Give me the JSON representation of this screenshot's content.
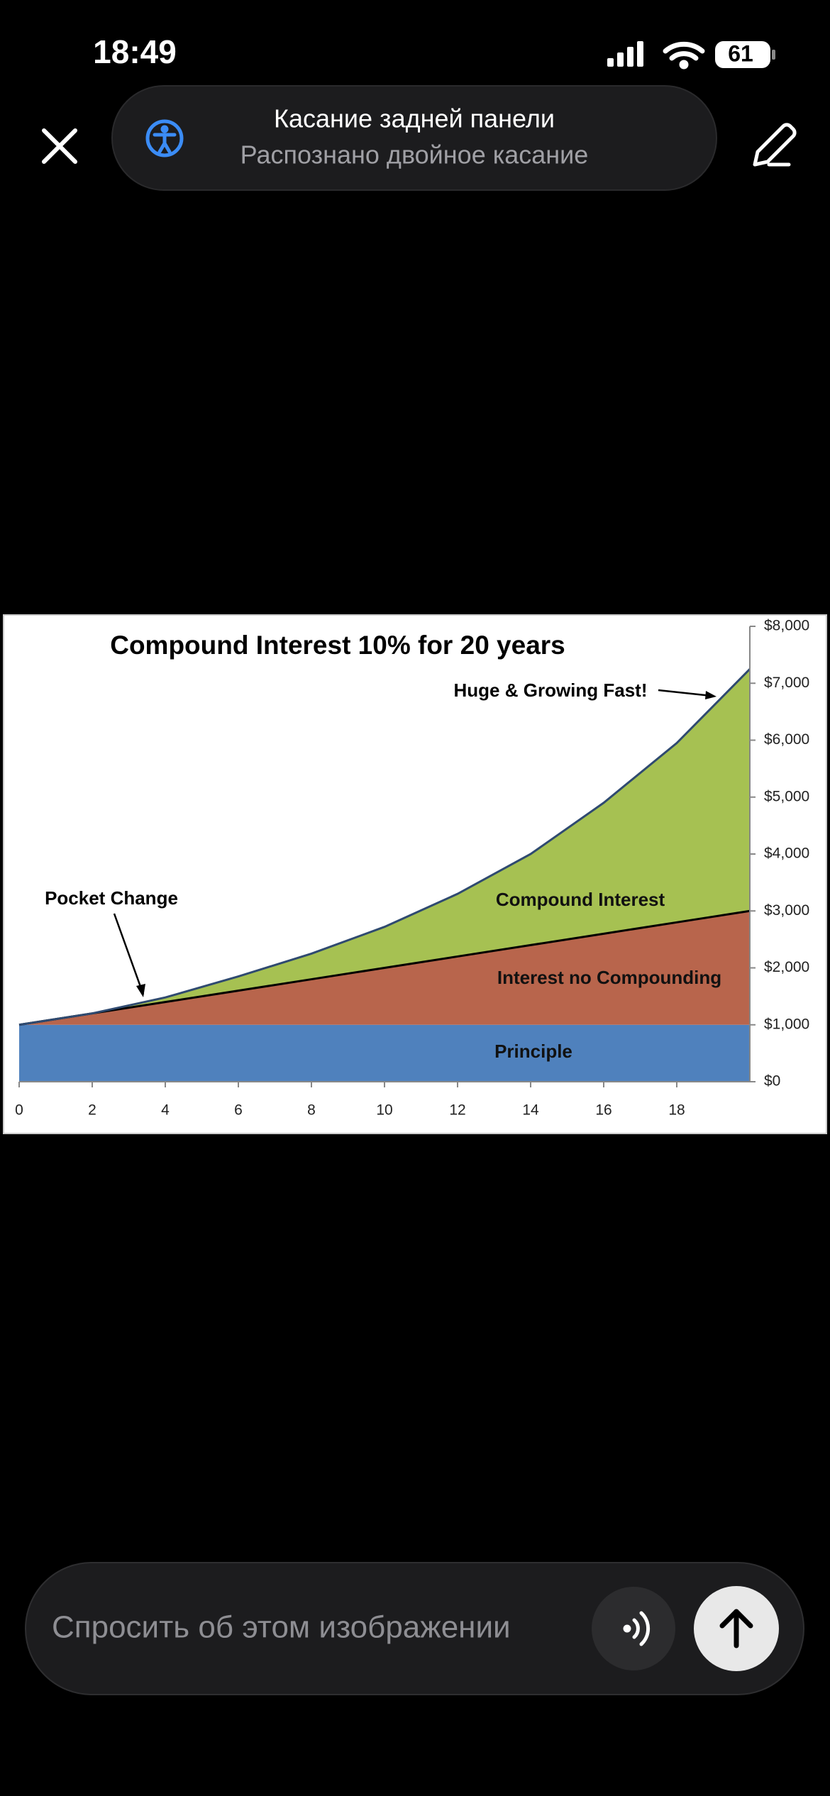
{
  "status_bar": {
    "time": "18:49",
    "battery": "61"
  },
  "notification": {
    "title": "Касание задней панели",
    "subtitle": "Распознано двойное касание"
  },
  "chart_data": {
    "type": "stacked_area",
    "title": "Compound Interest 10% for 20 years",
    "annotations": [
      "Pocket Change",
      "Huge & Growing Fast!"
    ],
    "x": [
      0,
      2,
      4,
      6,
      8,
      10,
      12,
      14,
      16,
      18,
      20
    ],
    "series": [
      {
        "name": "Principle",
        "color": "#4f81bd",
        "values": [
          1000,
          1000,
          1000,
          1000,
          1000,
          1000,
          1000,
          1000,
          1000,
          1000,
          1000
        ]
      },
      {
        "name": "Interest no Compounding",
        "color": "#b8654c",
        "values": [
          0,
          200,
          400,
          600,
          800,
          1000,
          1200,
          1400,
          1600,
          1800,
          2000
        ]
      },
      {
        "name": "Compound Interest",
        "color": "#a6c152",
        "values": [
          0,
          0,
          80,
          250,
          450,
          720,
          1100,
          1600,
          2300,
          3150,
          4250
        ]
      }
    ],
    "xlim": [
      0,
      20
    ],
    "xticks": [
      0,
      2,
      4,
      6,
      8,
      10,
      12,
      14,
      16,
      18
    ],
    "ylim": [
      0,
      8000
    ],
    "yticks": [
      {
        "value": 0,
        "label": "$0"
      },
      {
        "value": 1000,
        "label": "$1,000"
      },
      {
        "value": 2000,
        "label": "$2,000"
      },
      {
        "value": 3000,
        "label": "$3,000"
      },
      {
        "value": 4000,
        "label": "$4,000"
      },
      {
        "value": 5000,
        "label": "$5,000"
      },
      {
        "value": 6000,
        "label": "$6,000"
      },
      {
        "value": 7000,
        "label": "$7,000"
      },
      {
        "value": 8000,
        "label": "$8,000"
      }
    ],
    "y_axis_side": "right"
  },
  "input": {
    "placeholder": "Спросить об этом изображении"
  }
}
